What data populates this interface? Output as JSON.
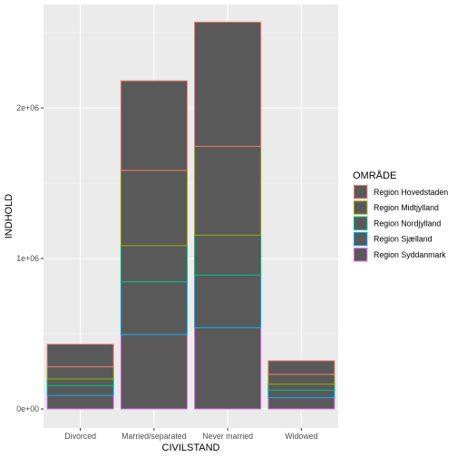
{
  "chart_data": {
    "type": "bar",
    "stacked": true,
    "categories": [
      "Divorced",
      "Married/separated",
      "Never married",
      "Widowed"
    ],
    "xlabel": "CIVILSTAND",
    "ylabel": "INDHOLD",
    "ylim": [
      0,
      2700000
    ],
    "yticks": [
      0,
      1000000,
      2000000
    ],
    "ytick_labels": [
      "0e+00",
      "1e+06",
      "2e+06"
    ],
    "grid": true,
    "bar_fill": "#595959",
    "panel_background": "#ebebeb",
    "legend": {
      "title": "OMRÅDE",
      "position": "right"
    },
    "series": [
      {
        "name": "Region Syddanmark",
        "color": "#e76bf3",
        "values": [
          90000,
          495000,
          540000,
          75000
        ]
      },
      {
        "name": "Region Sjælland",
        "color": "#00b0f6",
        "values": [
          65000,
          350000,
          350000,
          50000
        ]
      },
      {
        "name": "Region Nordjylland",
        "color": "#00bf7d",
        "values": [
          45000,
          240000,
          265000,
          40000
        ]
      },
      {
        "name": "Region Midtjylland",
        "color": "#a3a500",
        "values": [
          80000,
          500000,
          590000,
          65000
        ]
      },
      {
        "name": "Region Hovedstaden",
        "color": "#f8766d",
        "values": [
          150000,
          595000,
          825000,
          90000
        ]
      }
    ]
  }
}
